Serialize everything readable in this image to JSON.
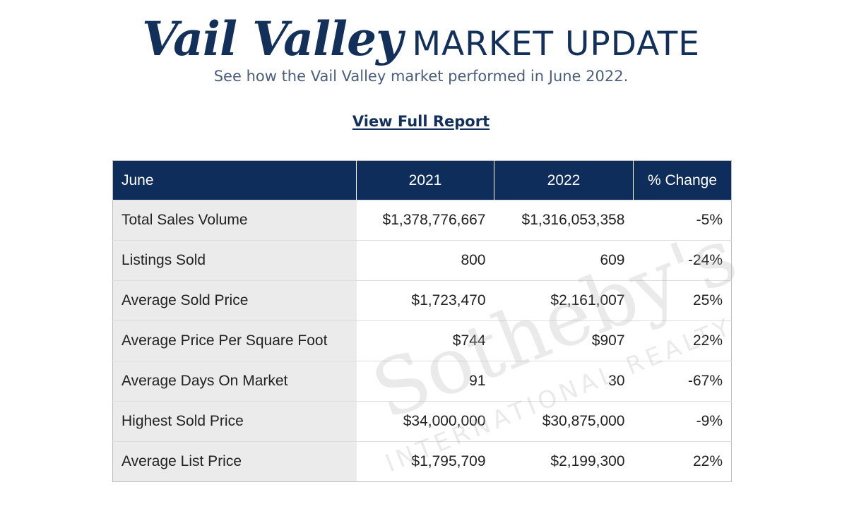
{
  "header": {
    "title_script": "Vail Valley",
    "title_rest": "MARKET UPDATE",
    "subtitle": "See how the Vail Valley market performed in June 2022."
  },
  "report_link": "View Full Report",
  "table": {
    "headers": [
      "June",
      "2021",
      "2022",
      "% Change"
    ],
    "rows": [
      [
        "Total Sales Volume",
        "$1,378,776,667",
        "$1,316,053,358",
        "-5%"
      ],
      [
        "Listings Sold",
        "800",
        "609",
        "-24%"
      ],
      [
        "Average Sold Price",
        "$1,723,470",
        "$2,161,007",
        "25%"
      ],
      [
        "Average Price Per Square Foot",
        "$744",
        "$907",
        "22%"
      ],
      [
        "Average Days On Market",
        "91",
        "30",
        "-67%"
      ],
      [
        "Highest Sold Price",
        "$34,000,000",
        "$30,875,000",
        "-9%"
      ],
      [
        "Average List Price",
        "$1,795,709",
        "$2,199,300",
        "22%"
      ]
    ]
  },
  "watermark": {
    "brand": "Sotheby's",
    "tagline": "INTERNATIONAL REALTY"
  },
  "colors": {
    "navy": "#0f2d5a",
    "label_bg": "#ebebeb"
  }
}
